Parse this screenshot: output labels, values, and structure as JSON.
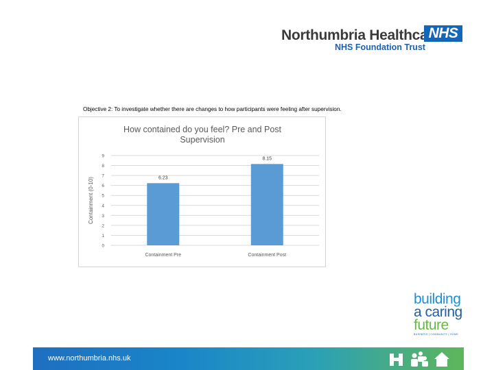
{
  "header": {
    "org_name": "Northumbria Healthcare",
    "org_sub": "NHS Foundation Trust",
    "nhs_badge": "NHS"
  },
  "objective_text": "Objective 2: To investigate whether there are changes to how participants were feeling after supervision.",
  "chart_data": {
    "type": "bar",
    "title": "How contained do you feel? Pre and Post Supervision",
    "title_lines": [
      "How contained do you feel? Pre and Post",
      "Supervision"
    ],
    "categories": [
      "Containment Pre",
      "Containment Post"
    ],
    "values": [
      6.23,
      8.15
    ],
    "data_labels": [
      "6.23",
      "8.15"
    ],
    "xlabel": "",
    "ylabel": "Containment (0-10)",
    "ylim": [
      0,
      9
    ],
    "yticks": [
      "0",
      "1",
      "2",
      "3",
      "4",
      "5",
      "6",
      "7",
      "8",
      "9"
    ],
    "grid": true,
    "legend": "none",
    "bar_color": "#5b9bd5"
  },
  "bcf_logo": {
    "line1": "building",
    "line2": "a caring",
    "line3": "future",
    "tagline": "BUSINESS | COMMUNITY | HOME"
  },
  "footer": {
    "url": "www.northumbria.nhs.uk",
    "icons": [
      "hospital-icon",
      "people-icon",
      "home-icon"
    ]
  }
}
